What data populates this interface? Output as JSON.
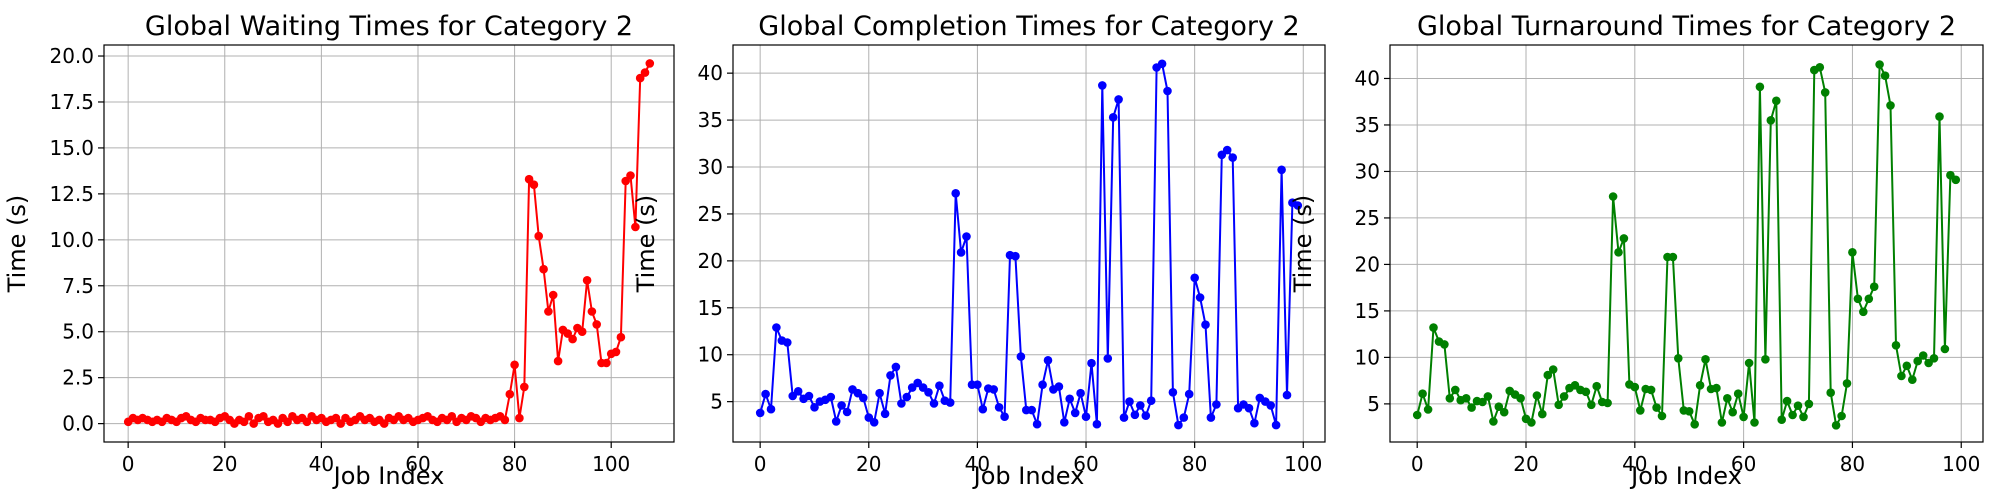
{
  "chart_data": [
    {
      "type": "line",
      "title": "Global Waiting Times for Category 2",
      "xlabel": "Job Index",
      "ylabel": "Time (s)",
      "xlim": [
        -5,
        113
      ],
      "ylim": [
        -1.0,
        20.6
      ],
      "xticks": [
        0,
        20,
        40,
        60,
        80,
        100
      ],
      "yticks": [
        0.0,
        2.5,
        5.0,
        7.5,
        10.0,
        12.5,
        15.0,
        17.5,
        20.0
      ],
      "ytick_decimals": 1,
      "grid": true,
      "series": [
        {
          "color": "#ff0000",
          "marker": "circle",
          "x": [
            0,
            1,
            2,
            3,
            4,
            5,
            6,
            7,
            8,
            9,
            10,
            11,
            12,
            13,
            14,
            15,
            16,
            17,
            18,
            19,
            20,
            21,
            22,
            23,
            24,
            25,
            26,
            27,
            28,
            29,
            30,
            31,
            32,
            33,
            34,
            35,
            36,
            37,
            38,
            39,
            40,
            41,
            42,
            43,
            44,
            45,
            46,
            47,
            48,
            49,
            50,
            51,
            52,
            53,
            54,
            55,
            56,
            57,
            58,
            59,
            60,
            61,
            62,
            63,
            64,
            65,
            66,
            67,
            68,
            69,
            70,
            71,
            72,
            73,
            74,
            75,
            76,
            77,
            78,
            79,
            80,
            81,
            82,
            83,
            84,
            85,
            86,
            87,
            88,
            89,
            90,
            91,
            92,
            93,
            94,
            95,
            96,
            97,
            98,
            99,
            100,
            101,
            102,
            103,
            104,
            105,
            106,
            107,
            108
          ],
          "values": [
            0.1,
            0.3,
            0.2,
            0.3,
            0.2,
            0.1,
            0.2,
            0.1,
            0.3,
            0.2,
            0.1,
            0.3,
            0.4,
            0.2,
            0.1,
            0.3,
            0.2,
            0.2,
            0.1,
            0.3,
            0.4,
            0.2,
            0.0,
            0.2,
            0.1,
            0.4,
            0.0,
            0.3,
            0.4,
            0.1,
            0.2,
            0.0,
            0.3,
            0.1,
            0.4,
            0.2,
            0.3,
            0.1,
            0.4,
            0.2,
            0.3,
            0.1,
            0.2,
            0.3,
            0.0,
            0.3,
            0.1,
            0.2,
            0.4,
            0.2,
            0.3,
            0.1,
            0.2,
            0.0,
            0.3,
            0.2,
            0.4,
            0.2,
            0.3,
            0.1,
            0.2,
            0.3,
            0.4,
            0.2,
            0.1,
            0.3,
            0.2,
            0.4,
            0.1,
            0.3,
            0.2,
            0.4,
            0.3,
            0.1,
            0.3,
            0.2,
            0.3,
            0.4,
            0.2,
            1.6,
            3.2,
            0.3,
            2.0,
            13.3,
            13.0,
            10.2,
            8.4,
            6.1,
            7.0,
            3.4,
            5.1,
            4.9,
            4.6,
            5.2,
            5.0,
            7.8,
            6.1,
            5.4,
            3.3,
            3.3,
            3.8,
            3.9,
            4.7,
            13.2,
            13.5,
            10.7,
            18.8,
            19.1,
            19.6
          ]
        }
      ]
    },
    {
      "type": "line",
      "title": "Global Completion Times for Category 2",
      "xlabel": "Job Index",
      "ylabel": "Time (s)",
      "xlim": [
        -5,
        104
      ],
      "ylim": [
        0.7,
        43.0
      ],
      "xticks": [
        0,
        20,
        40,
        60,
        80,
        100
      ],
      "yticks": [
        5,
        10,
        15,
        20,
        25,
        30,
        35,
        40
      ],
      "ytick_decimals": 0,
      "grid": true,
      "series": [
        {
          "color": "#0000ff",
          "marker": "circle",
          "x": [
            0,
            1,
            2,
            3,
            4,
            5,
            6,
            7,
            8,
            9,
            10,
            11,
            12,
            13,
            14,
            15,
            16,
            17,
            18,
            19,
            20,
            21,
            22,
            23,
            24,
            25,
            26,
            27,
            28,
            29,
            30,
            31,
            32,
            33,
            34,
            35,
            36,
            37,
            38,
            39,
            40,
            41,
            42,
            43,
            44,
            45,
            46,
            47,
            48,
            49,
            50,
            51,
            52,
            53,
            54,
            55,
            56,
            57,
            58,
            59,
            60,
            61,
            62,
            63,
            64,
            65,
            66,
            67,
            68,
            69,
            70,
            71,
            72,
            73,
            74,
            75,
            76,
            77,
            78,
            79,
            80,
            81,
            82,
            83,
            84,
            85,
            86,
            87,
            88,
            89,
            90,
            91,
            92,
            93,
            94,
            95,
            96,
            97,
            98,
            99
          ],
          "values": [
            3.8,
            5.8,
            4.2,
            12.9,
            11.5,
            11.3,
            5.6,
            6.1,
            5.3,
            5.6,
            4.4,
            5.0,
            5.2,
            5.5,
            2.9,
            4.6,
            3.9,
            6.3,
            5.9,
            5.4,
            3.3,
            2.8,
            5.9,
            3.7,
            7.8,
            8.7,
            4.8,
            5.5,
            6.5,
            7.0,
            6.5,
            6.0,
            4.8,
            6.7,
            5.1,
            4.9,
            27.2,
            20.9,
            22.6,
            6.8,
            6.8,
            4.2,
            6.4,
            6.3,
            4.4,
            3.4,
            20.6,
            20.5,
            9.8,
            4.1,
            4.1,
            2.6,
            6.8,
            9.4,
            6.3,
            6.6,
            2.8,
            5.3,
            3.8,
            5.9,
            3.4,
            9.1,
            2.6,
            38.7,
            9.6,
            35.3,
            37.2,
            3.3,
            5.0,
            3.6,
            4.6,
            3.5,
            5.1,
            40.6,
            41.0,
            38.1,
            6.0,
            2.5,
            3.3,
            5.8,
            18.2,
            16.1,
            13.2,
            3.3,
            4.7,
            31.3,
            31.8,
            31.0,
            4.3,
            4.7,
            4.3,
            2.7,
            5.4,
            5.0,
            4.6,
            2.5,
            29.7,
            5.7,
            26.2,
            25.9
          ]
        }
      ]
    },
    {
      "type": "line",
      "title": "Global Turnaround Times for Category 2",
      "xlabel": "Job Index",
      "ylabel": "Time (s)",
      "xlim": [
        -5,
        104
      ],
      "ylim": [
        0.9,
        43.6
      ],
      "xticks": [
        0,
        20,
        40,
        60,
        80,
        100
      ],
      "yticks": [
        5,
        10,
        15,
        20,
        25,
        30,
        35,
        40
      ],
      "ytick_decimals": 0,
      "grid": true,
      "series": [
        {
          "color": "#008000",
          "marker": "circle",
          "x": [
            0,
            1,
            2,
            3,
            4,
            5,
            6,
            7,
            8,
            9,
            10,
            11,
            12,
            13,
            14,
            15,
            16,
            17,
            18,
            19,
            20,
            21,
            22,
            23,
            24,
            25,
            26,
            27,
            28,
            29,
            30,
            31,
            32,
            33,
            34,
            35,
            36,
            37,
            38,
            39,
            40,
            41,
            42,
            43,
            44,
            45,
            46,
            47,
            48,
            49,
            50,
            51,
            52,
            53,
            54,
            55,
            56,
            57,
            58,
            59,
            60,
            61,
            62,
            63,
            64,
            65,
            66,
            67,
            68,
            69,
            70,
            71,
            72,
            73,
            74,
            75,
            76,
            77,
            78,
            79,
            80,
            81,
            82,
            83,
            84,
            85,
            86,
            87,
            88,
            89,
            90,
            91,
            92,
            93,
            94,
            95,
            96,
            97,
            98,
            99
          ],
          "values": [
            3.8,
            6.1,
            4.4,
            13.2,
            11.7,
            11.4,
            5.6,
            6.5,
            5.4,
            5.6,
            4.6,
            5.3,
            5.2,
            5.8,
            3.1,
            4.7,
            4.1,
            6.4,
            6.0,
            5.6,
            3.4,
            3.0,
            5.9,
            3.9,
            8.1,
            8.7,
            4.9,
            5.8,
            6.7,
            7.0,
            6.5,
            6.3,
            4.9,
            6.9,
            5.2,
            5.1,
            27.3,
            21.3,
            22.8,
            7.1,
            6.8,
            4.3,
            6.6,
            6.5,
            4.6,
            3.7,
            20.8,
            20.8,
            9.9,
            4.3,
            4.2,
            2.8,
            7.0,
            9.8,
            6.6,
            6.7,
            3.0,
            5.6,
            4.1,
            6.1,
            3.6,
            9.4,
            3.0,
            39.1,
            9.8,
            35.5,
            37.6,
            3.3,
            5.3,
            3.8,
            4.8,
            3.6,
            5.0,
            40.9,
            41.2,
            38.5,
            6.2,
            2.7,
            3.7,
            7.2,
            21.3,
            16.3,
            14.9,
            16.3,
            17.6,
            41.5,
            40.3,
            37.1,
            11.3,
            8.0,
            9.1,
            7.6,
            9.6,
            10.2,
            9.4,
            9.9,
            35.9,
            10.9,
            29.6,
            29.1
          ]
        }
      ]
    }
  ]
}
